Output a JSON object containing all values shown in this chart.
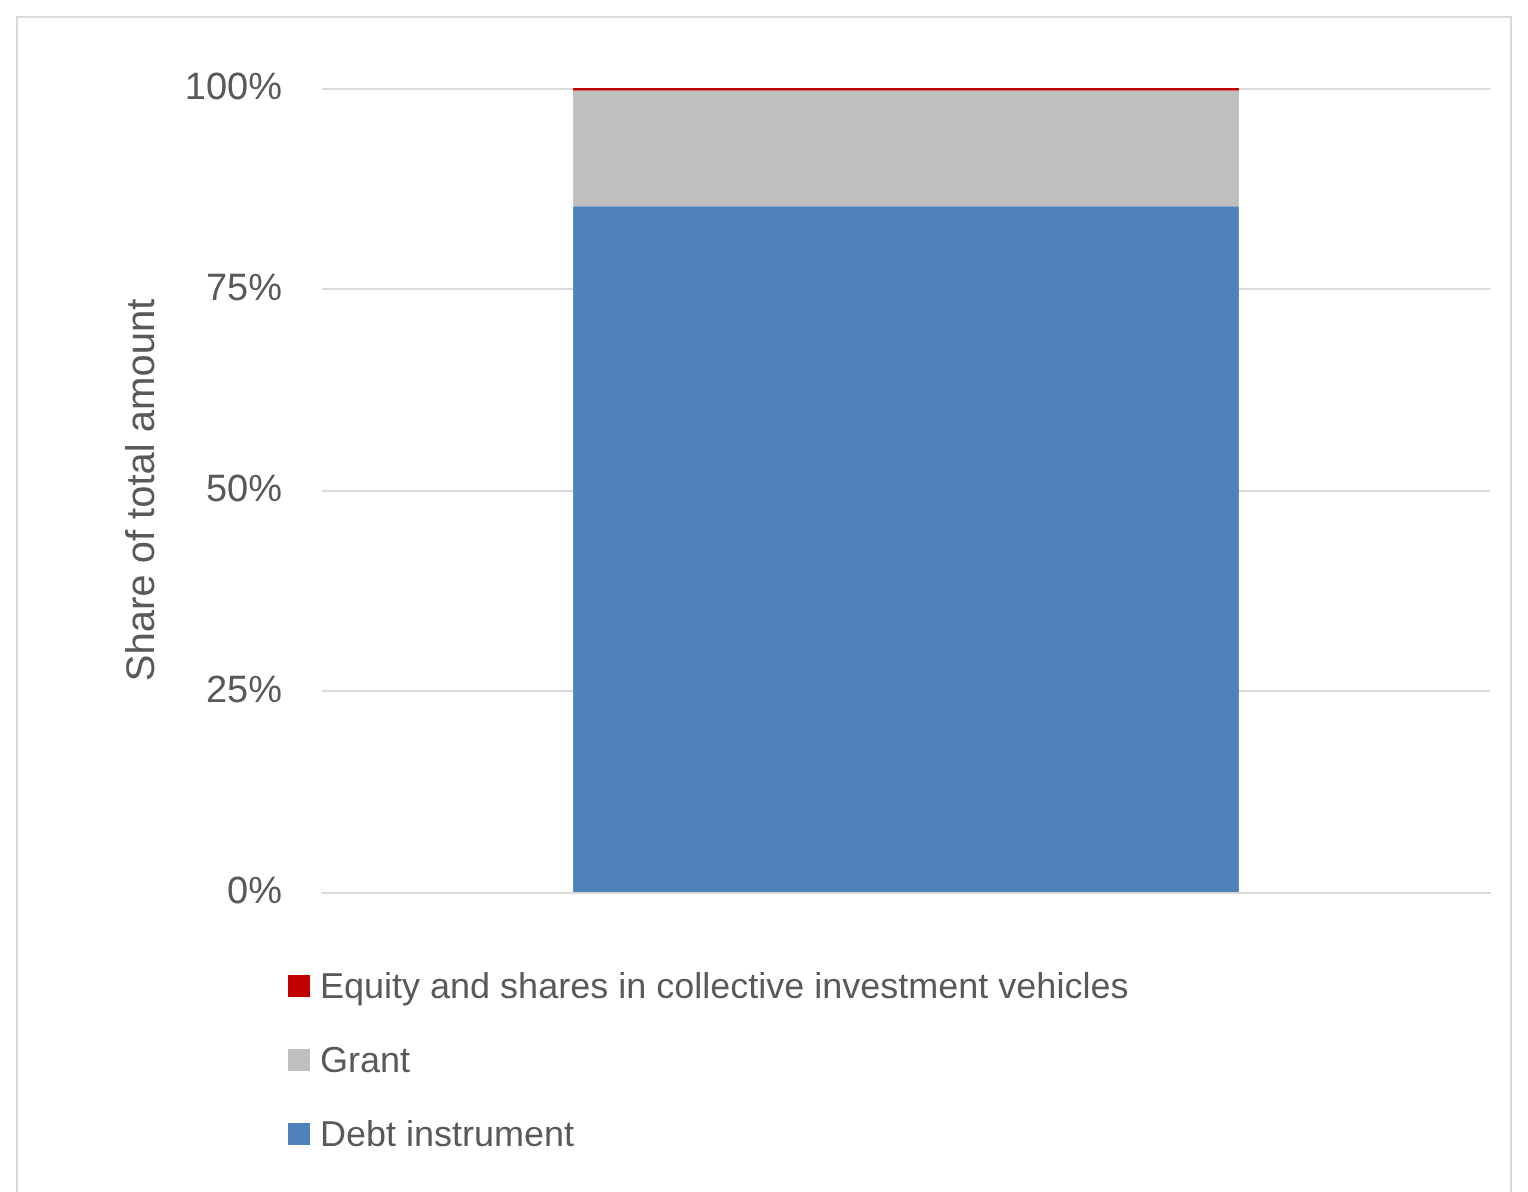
{
  "chart_data": {
    "type": "bar",
    "ylabel": "Share of total amount",
    "categories": [
      null
    ],
    "stacked": true,
    "series": [
      {
        "name": "Debt instrument",
        "color": "#4f81bd",
        "values": [
          85.3
        ]
      },
      {
        "name": "Grant",
        "color": "#bfbfbf",
        "values": [
          14.4
        ]
      },
      {
        "name": "Equity and shares in collective investment vehicles",
        "color": "#c00000",
        "values": [
          0.3
        ]
      }
    ],
    "ylim": [
      0,
      100
    ],
    "yticks": [
      {
        "value": 0,
        "label": "0%"
      },
      {
        "value": 25,
        "label": "25%"
      },
      {
        "value": 50,
        "label": "50%"
      },
      {
        "value": 75,
        "label": "75%"
      },
      {
        "value": 100,
        "label": "100%"
      }
    ],
    "grid": "y",
    "legend": "bottom"
  }
}
